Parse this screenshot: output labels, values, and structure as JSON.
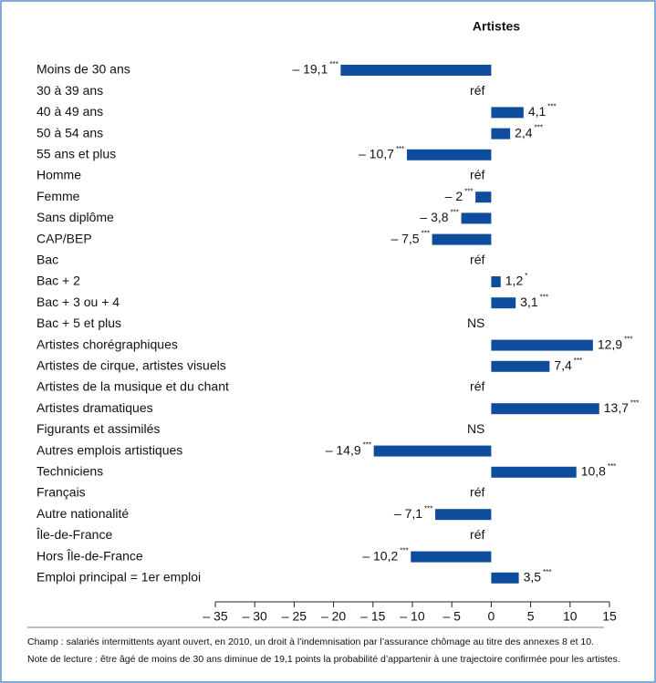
{
  "chart_data": {
    "type": "bar",
    "orientation": "horizontal",
    "title": "Artistes",
    "categories": [
      "Moins de 30 ans",
      "30 à 39 ans",
      "40 à 49 ans",
      "50 à 54 ans",
      "55 ans et plus",
      "Homme",
      "Femme",
      "Sans diplôme",
      "CAP/BEP",
      "Bac",
      "Bac + 2",
      "Bac + 3 ou + 4",
      "Bac + 5 et plus",
      "Artistes chorégraphiques",
      "Artistes de cirque, artistes visuels",
      "Artistes de la musique et du chant",
      "Artistes dramatiques",
      "Figurants et assimilés",
      "Autres emplois artistiques",
      "Techniciens",
      "Français",
      "Autre nationalité",
      "Île-de-France",
      "Hors Île-de-France",
      "Emploi principal = 1er emploi"
    ],
    "values": [
      -19.1,
      null,
      4.1,
      2.4,
      -10.7,
      null,
      -2,
      -3.8,
      -7.5,
      null,
      1.2,
      3.1,
      null,
      12.9,
      7.4,
      null,
      13.7,
      null,
      -14.9,
      10.8,
      null,
      -7.1,
      null,
      -10.2,
      3.5
    ],
    "value_labels": [
      "– 19,1",
      "réf",
      "4,1",
      "2,4",
      "– 10,7",
      "réf",
      "– 2",
      "– 3,8",
      "– 7,5",
      "réf",
      "1,2",
      "3,1",
      "NS",
      "12,9",
      "7,4",
      "réf",
      "13,7",
      "NS",
      "– 14,9",
      "10,8",
      "réf",
      "– 7,1",
      "réf",
      "– 10,2",
      "3,5"
    ],
    "significance": [
      "***",
      null,
      "***",
      "***",
      "***",
      null,
      "***",
      "***",
      "***",
      null,
      "*",
      "***",
      null,
      "***",
      "***",
      null,
      "***",
      null,
      "***",
      "***",
      null,
      "***",
      null,
      "***",
      "***"
    ],
    "color": "#0e4c9c",
    "xlim": [
      -35,
      15
    ],
    "xticks": [
      {
        "value": -35,
        "label": "– 35"
      },
      {
        "value": -30,
        "label": "– 30"
      },
      {
        "value": -25,
        "label": "– 25"
      },
      {
        "value": -20,
        "label": "– 20"
      },
      {
        "value": -15,
        "label": "– 15"
      },
      {
        "value": -10,
        "label": "– 10"
      },
      {
        "value": -5,
        "label": "– 5"
      },
      0,
      5,
      10,
      15
    ],
    "notes": [
      "Champ : salariés intermittents ayant ouvert, en 2010, un droit à l’indemnisation par l’assurance chômage au titre des annexes 8 et 10.",
      "Note de lecture : être âgé de moins de 30 ans diminue de 19,1 points la probabilité d’appartenir à une trajectoire confirmée pour les artistes."
    ]
  }
}
